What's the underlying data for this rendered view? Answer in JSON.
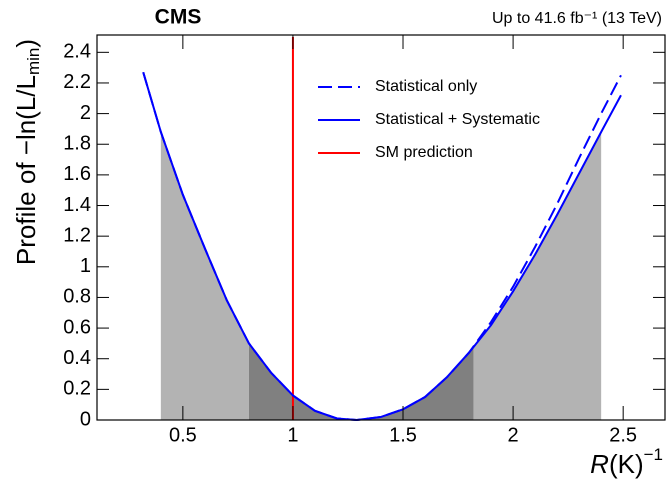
{
  "chart_data": {
    "type": "line",
    "title": "CMS",
    "subtitle": "Up to 41.6 fb⁻¹ (13 TeV)",
    "y_label": [
      "Profile of −ln(L/L",
      "min",
      ")"
    ],
    "x_label": [
      "R",
      "(K)",
      "−1"
    ],
    "x": [
      0.32,
      0.4,
      0.5,
      0.6,
      0.7,
      0.8,
      0.9,
      1.0,
      1.1,
      1.2,
      1.29,
      1.4,
      1.5,
      1.6,
      1.7,
      1.8,
      1.9,
      2.0,
      2.1,
      2.2,
      2.3,
      2.4,
      2.49
    ],
    "series": [
      {
        "name": "Statistical only",
        "color": "#0000ff",
        "style": "dashed",
        "values": [
          2.27,
          1.88,
          1.47,
          1.12,
          0.78,
          0.5,
          0.31,
          0.16,
          0.06,
          0.01,
          0,
          0.02,
          0.07,
          0.15,
          0.28,
          0.44,
          0.64,
          0.87,
          1.13,
          1.41,
          1.71,
          2.0,
          2.25
        ]
      },
      {
        "name": "Statistical + Systematic",
        "color": "#0000ff",
        "style": "solid",
        "values": [
          2.27,
          1.88,
          1.47,
          1.12,
          0.78,
          0.5,
          0.31,
          0.16,
          0.06,
          0.01,
          0,
          0.02,
          0.07,
          0.15,
          0.28,
          0.44,
          0.62,
          0.84,
          1.08,
          1.34,
          1.61,
          1.88,
          2.12
        ]
      }
    ],
    "reference_line": {
      "name": "SM prediction",
      "x": 1,
      "color": "#ff0000"
    },
    "bands": [
      {
        "from": 0.4,
        "to": 0.8,
        "color": "#b3b3b3"
      },
      {
        "from": 0.8,
        "to": 1.82,
        "color": "#808080"
      },
      {
        "from": 1.82,
        "to": 2.4,
        "color": "#b3b3b3"
      }
    ],
    "xlim": [
      0.11,
      2.69
    ],
    "xticks": [
      0.5,
      1,
      1.5,
      2,
      2.5
    ],
    "ylim": [
      0,
      2.5
    ],
    "yticks": [
      0,
      0.2,
      0.4,
      0.6,
      0.8,
      1,
      1.2,
      1.4,
      1.6,
      1.8,
      2,
      2.2,
      2.4
    ],
    "grid": false
  }
}
